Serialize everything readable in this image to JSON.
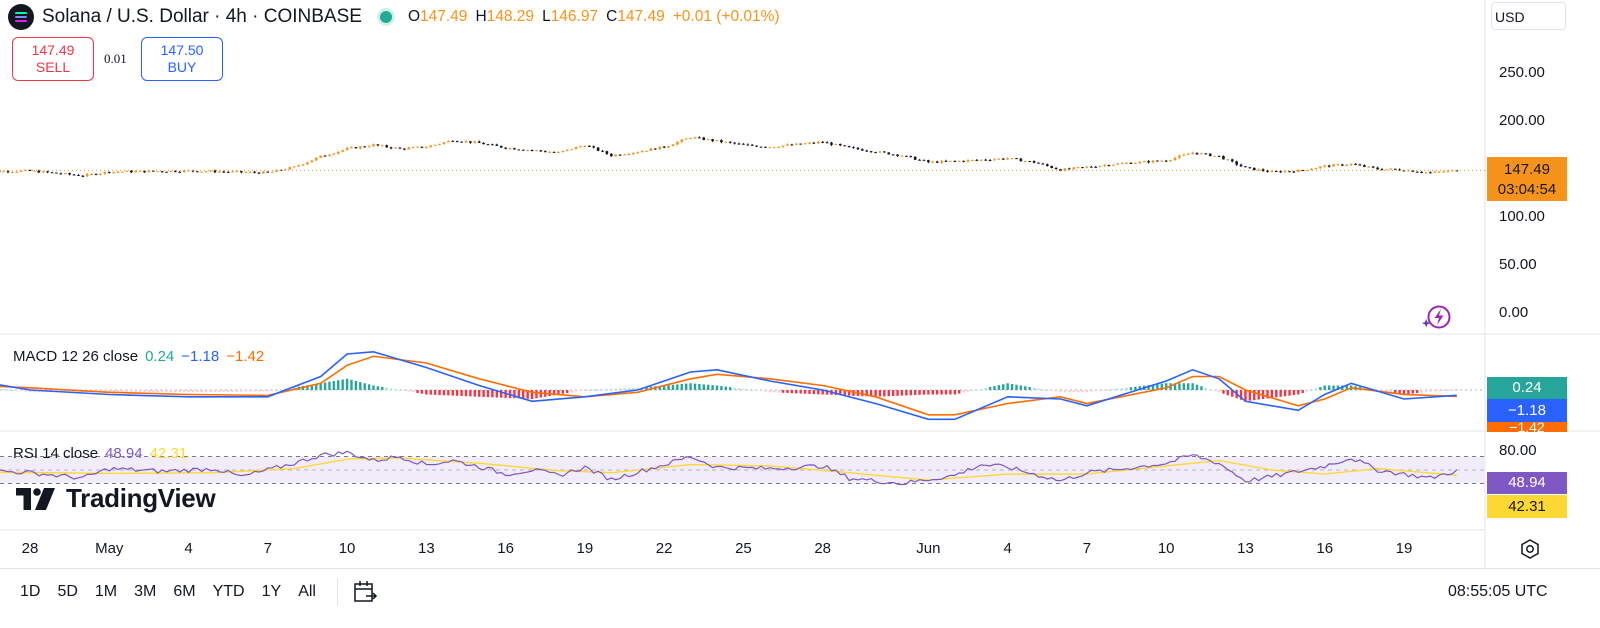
{
  "header": {
    "symbol": "Solana / U.S. Dollar · 4h · COINBASE",
    "ohlc": {
      "o_label": "O",
      "o": "147.49",
      "h_label": "H",
      "h": "148.29",
      "l_label": "L",
      "l": "146.97",
      "c_label": "C",
      "c": "147.49",
      "change": "+0.01 (+0.01%)"
    },
    "currency": "USD"
  },
  "trade": {
    "sell_price": "147.49",
    "sell_label": "SELL",
    "spread": "0.01",
    "buy_price": "147.50",
    "buy_label": "BUY"
  },
  "price_tag": {
    "price": "147.49",
    "countdown": "03:04:54"
  },
  "macd": {
    "title": "MACD 12 26 close",
    "hist": "0.24",
    "macd": "−1.18",
    "signal": "−1.42",
    "tag_hist": "0.24",
    "tag_macd": "−1.18",
    "tag_signal": "−1.42"
  },
  "rsi": {
    "title": "RSI 14 close",
    "rsi": "48.94",
    "ma": "42.31",
    "tag_rsi": "48.94",
    "tag_ma": "42.31"
  },
  "brand": "TradingView",
  "toolbar": {
    "timeframes": [
      "1D",
      "5D",
      "1M",
      "3M",
      "6M",
      "YTD",
      "1Y",
      "All"
    ],
    "clock": "08:55:05 UTC"
  },
  "colors": {
    "up": "#f7931a",
    "down": "#131722",
    "macd": "#2962ff",
    "signal": "#ff6d00",
    "hist_up": "#26a69a",
    "hist_down": "#f23645",
    "rsi": "#7e57c2",
    "rsi_ma": "#fdd835",
    "rsi_band": "#f1ecfa"
  },
  "icons": [
    "solana-logo-icon",
    "market-open-dot-icon",
    "calendar-icon",
    "settings-icon",
    "flash-icon",
    "tradingview-logo-icon"
  ],
  "chart_data": [
    {
      "type": "candlestick",
      "title": "Solana / U.S. Dollar · 4h · COINBASE",
      "ylim": [
        0,
        260
      ],
      "y_ticks": [
        "250.00",
        "200.00",
        "100.00",
        "50.00",
        "0.00"
      ],
      "y_tick_values": [
        250,
        200,
        100,
        50,
        0
      ],
      "x_tick_labels": [
        "28",
        "May",
        "4",
        "7",
        "10",
        "13",
        "16",
        "19",
        "22",
        "25",
        "28",
        "Jun",
        "4",
        "7",
        "10",
        "13",
        "16",
        "19"
      ],
      "x_tick_dates": [
        "2024-04-28",
        "2024-05-01",
        "2024-05-04",
        "2024-05-07",
        "2024-05-10",
        "2024-05-13",
        "2024-05-16",
        "2024-05-19",
        "2024-05-22",
        "2024-05-25",
        "2024-05-28",
        "2024-06-01",
        "2024-06-04",
        "2024-06-07",
        "2024-06-10",
        "2024-06-13",
        "2024-06-16",
        "2024-06-19"
      ],
      "close_trend": [
        {
          "date": "2024-04-26",
          "close": 146
        },
        {
          "date": "2024-04-28",
          "close": 147
        },
        {
          "date": "2024-04-30",
          "close": 142
        },
        {
          "date": "2024-05-01",
          "close": 146
        },
        {
          "date": "2024-05-04",
          "close": 147
        },
        {
          "date": "2024-05-07",
          "close": 145
        },
        {
          "date": "2024-05-08",
          "close": 151
        },
        {
          "date": "2024-05-09",
          "close": 162
        },
        {
          "date": "2024-05-10",
          "close": 170
        },
        {
          "date": "2024-05-11",
          "close": 174
        },
        {
          "date": "2024-05-12",
          "close": 170
        },
        {
          "date": "2024-05-13",
          "close": 172
        },
        {
          "date": "2024-05-14",
          "close": 179
        },
        {
          "date": "2024-05-15",
          "close": 176
        },
        {
          "date": "2024-05-16",
          "close": 171
        },
        {
          "date": "2024-05-18",
          "close": 166
        },
        {
          "date": "2024-05-19",
          "close": 174
        },
        {
          "date": "2024-05-20",
          "close": 163
        },
        {
          "date": "2024-05-21",
          "close": 167
        },
        {
          "date": "2024-05-22",
          "close": 172
        },
        {
          "date": "2024-05-23",
          "close": 182
        },
        {
          "date": "2024-05-24",
          "close": 178
        },
        {
          "date": "2024-05-25",
          "close": 174
        },
        {
          "date": "2024-05-26",
          "close": 172
        },
        {
          "date": "2024-05-28",
          "close": 177
        },
        {
          "date": "2024-05-29",
          "close": 171
        },
        {
          "date": "2024-05-31",
          "close": 163
        },
        {
          "date": "2024-06-01",
          "close": 156
        },
        {
          "date": "2024-06-02",
          "close": 157
        },
        {
          "date": "2024-06-04",
          "close": 160
        },
        {
          "date": "2024-06-05",
          "close": 156
        },
        {
          "date": "2024-06-06",
          "close": 148
        },
        {
          "date": "2024-06-07",
          "close": 151
        },
        {
          "date": "2024-06-08",
          "close": 154
        },
        {
          "date": "2024-06-10",
          "close": 158
        },
        {
          "date": "2024-06-11",
          "close": 166
        },
        {
          "date": "2024-06-12",
          "close": 162
        },
        {
          "date": "2024-06-13",
          "close": 150
        },
        {
          "date": "2024-06-14",
          "close": 146
        },
        {
          "date": "2024-06-15",
          "close": 147
        },
        {
          "date": "2024-06-16",
          "close": 152
        },
        {
          "date": "2024-06-17",
          "close": 154
        },
        {
          "date": "2024-06-18",
          "close": 149
        },
        {
          "date": "2024-06-19",
          "close": 148
        },
        {
          "date": "2024-06-20",
          "close": 145
        },
        {
          "date": "2024-06-21",
          "close": 147.49
        }
      ],
      "last_price": 147.49
    },
    {
      "type": "line",
      "title": "MACD 12 26 close",
      "series": [
        {
          "name": "MACD",
          "points": [
            {
              "date": "2024-04-26",
              "value": 2
            },
            {
              "date": "2024-04-28",
              "value": 0
            },
            {
              "date": "2024-05-01",
              "value": -1
            },
            {
              "date": "2024-05-04",
              "value": -1.5
            },
            {
              "date": "2024-05-07",
              "value": -1.5
            },
            {
              "date": "2024-05-09",
              "value": 3
            },
            {
              "date": "2024-05-10",
              "value": 8
            },
            {
              "date": "2024-05-11",
              "value": 8.5
            },
            {
              "date": "2024-05-13",
              "value": 5
            },
            {
              "date": "2024-05-15",
              "value": 1
            },
            {
              "date": "2024-05-17",
              "value": -2.5
            },
            {
              "date": "2024-05-19",
              "value": -1.5
            },
            {
              "date": "2024-05-21",
              "value": 0
            },
            {
              "date": "2024-05-23",
              "value": 4
            },
            {
              "date": "2024-05-24",
              "value": 4.5
            },
            {
              "date": "2024-05-26",
              "value": 2
            },
            {
              "date": "2024-05-28",
              "value": 0
            },
            {
              "date": "2024-05-30",
              "value": -3
            },
            {
              "date": "2024-06-01",
              "value": -6.5
            },
            {
              "date": "2024-06-02",
              "value": -6.5
            },
            {
              "date": "2024-06-04",
              "value": -1.5
            },
            {
              "date": "2024-06-06",
              "value": -2
            },
            {
              "date": "2024-06-07",
              "value": -3.5
            },
            {
              "date": "2024-06-10",
              "value": 2
            },
            {
              "date": "2024-06-11",
              "value": 4.5
            },
            {
              "date": "2024-06-12",
              "value": 2.5
            },
            {
              "date": "2024-06-13",
              "value": -2.5
            },
            {
              "date": "2024-06-15",
              "value": -4.5
            },
            {
              "date": "2024-06-16",
              "value": -1
            },
            {
              "date": "2024-06-17",
              "value": 1.5
            },
            {
              "date": "2024-06-19",
              "value": -2
            },
            {
              "date": "2024-06-21",
              "value": -1.18
            }
          ]
        },
        {
          "name": "Signal",
          "points": [
            {
              "date": "2024-04-26",
              "value": 1
            },
            {
              "date": "2024-04-28",
              "value": 0.5
            },
            {
              "date": "2024-05-01",
              "value": -0.5
            },
            {
              "date": "2024-05-04",
              "value": -1
            },
            {
              "date": "2024-05-07",
              "value": -1.2
            },
            {
              "date": "2024-05-09",
              "value": 1.5
            },
            {
              "date": "2024-05-10",
              "value": 5.5
            },
            {
              "date": "2024-05-11",
              "value": 7.5
            },
            {
              "date": "2024-05-13",
              "value": 6
            },
            {
              "date": "2024-05-15",
              "value": 2.5
            },
            {
              "date": "2024-05-17",
              "value": -0.5
            },
            {
              "date": "2024-05-19",
              "value": -1.5
            },
            {
              "date": "2024-05-21",
              "value": -0.5
            },
            {
              "date": "2024-05-23",
              "value": 2.5
            },
            {
              "date": "2024-05-24",
              "value": 3.5
            },
            {
              "date": "2024-05-26",
              "value": 2.5
            },
            {
              "date": "2024-05-28",
              "value": 1
            },
            {
              "date": "2024-05-30",
              "value": -1.5
            },
            {
              "date": "2024-06-01",
              "value": -5.5
            },
            {
              "date": "2024-06-02",
              "value": -5.5
            },
            {
              "date": "2024-06-04",
              "value": -3
            },
            {
              "date": "2024-06-06",
              "value": -1.5
            },
            {
              "date": "2024-06-07",
              "value": -3
            },
            {
              "date": "2024-06-10",
              "value": 0.5
            },
            {
              "date": "2024-06-11",
              "value": 3
            },
            {
              "date": "2024-06-12",
              "value": 3
            },
            {
              "date": "2024-06-13",
              "value": 0
            },
            {
              "date": "2024-06-15",
              "value": -3.5
            },
            {
              "date": "2024-06-16",
              "value": -2
            },
            {
              "date": "2024-06-17",
              "value": 0.5
            },
            {
              "date": "2024-06-19",
              "value": -1
            },
            {
              "date": "2024-06-21",
              "value": -1.42
            }
          ]
        }
      ],
      "last_values": {
        "hist": 0.24,
        "macd": -1.18,
        "signal": -1.42
      }
    },
    {
      "type": "line",
      "title": "RSI 14 close",
      "y_ticks": [
        "80.00"
      ],
      "bands": [
        70,
        30
      ],
      "series": [
        {
          "name": "RSI",
          "points": [
            {
              "date": "2024-04-26",
              "value": 50
            },
            {
              "date": "2024-04-28",
              "value": 46
            },
            {
              "date": "2024-04-30",
              "value": 38
            },
            {
              "date": "2024-05-01",
              "value": 52
            },
            {
              "date": "2024-05-03",
              "value": 48
            },
            {
              "date": "2024-05-05",
              "value": 52
            },
            {
              "date": "2024-05-06",
              "value": 40
            },
            {
              "date": "2024-05-08",
              "value": 60
            },
            {
              "date": "2024-05-09",
              "value": 72
            },
            {
              "date": "2024-05-10",
              "value": 76
            },
            {
              "date": "2024-05-11",
              "value": 64
            },
            {
              "date": "2024-05-12",
              "value": 70
            },
            {
              "date": "2024-05-13",
              "value": 58
            },
            {
              "date": "2024-05-14",
              "value": 64
            },
            {
              "date": "2024-05-15",
              "value": 55
            },
            {
              "date": "2024-05-16",
              "value": 44
            },
            {
              "date": "2024-05-17",
              "value": 50
            },
            {
              "date": "2024-05-18",
              "value": 42
            },
            {
              "date": "2024-05-19",
              "value": 54
            },
            {
              "date": "2024-05-20",
              "value": 36
            },
            {
              "date": "2024-05-22",
              "value": 58
            },
            {
              "date": "2024-05-23",
              "value": 70
            },
            {
              "date": "2024-05-24",
              "value": 54
            },
            {
              "date": "2024-05-26",
              "value": 52
            },
            {
              "date": "2024-05-28",
              "value": 56
            },
            {
              "date": "2024-05-29",
              "value": 38
            },
            {
              "date": "2024-05-31",
              "value": 30
            },
            {
              "date": "2024-06-01",
              "value": 36
            },
            {
              "date": "2024-06-02",
              "value": 42
            },
            {
              "date": "2024-06-03",
              "value": 58
            },
            {
              "date": "2024-06-04",
              "value": 54
            },
            {
              "date": "2024-06-06",
              "value": 34
            },
            {
              "date": "2024-06-07",
              "value": 46
            },
            {
              "date": "2024-06-08",
              "value": 50
            },
            {
              "date": "2024-06-10",
              "value": 60
            },
            {
              "date": "2024-06-11",
              "value": 72
            },
            {
              "date": "2024-06-12",
              "value": 60
            },
            {
              "date": "2024-06-13",
              "value": 34
            },
            {
              "date": "2024-06-14",
              "value": 40
            },
            {
              "date": "2024-06-16",
              "value": 56
            },
            {
              "date": "2024-06-17",
              "value": 68
            },
            {
              "date": "2024-06-18",
              "value": 50
            },
            {
              "date": "2024-06-19",
              "value": 44
            },
            {
              "date": "2024-06-20",
              "value": 38
            },
            {
              "date": "2024-06-21",
              "value": 48.94
            }
          ]
        },
        {
          "name": "RSI MA",
          "points": [
            {
              "date": "2024-04-26",
              "value": 47
            },
            {
              "date": "2024-05-01",
              "value": 45
            },
            {
              "date": "2024-05-05",
              "value": 46
            },
            {
              "date": "2024-05-08",
              "value": 52
            },
            {
              "date": "2024-05-10",
              "value": 66
            },
            {
              "date": "2024-05-12",
              "value": 68
            },
            {
              "date": "2024-05-15",
              "value": 60
            },
            {
              "date": "2024-05-18",
              "value": 49
            },
            {
              "date": "2024-05-20",
              "value": 46
            },
            {
              "date": "2024-05-23",
              "value": 58
            },
            {
              "date": "2024-05-26",
              "value": 56
            },
            {
              "date": "2024-05-29",
              "value": 46
            },
            {
              "date": "2024-06-01",
              "value": 35
            },
            {
              "date": "2024-06-04",
              "value": 44
            },
            {
              "date": "2024-06-07",
              "value": 44
            },
            {
              "date": "2024-06-10",
              "value": 56
            },
            {
              "date": "2024-06-12",
              "value": 64
            },
            {
              "date": "2024-06-14",
              "value": 50
            },
            {
              "date": "2024-06-16",
              "value": 44
            },
            {
              "date": "2024-06-18",
              "value": 52
            },
            {
              "date": "2024-06-21",
              "value": 42.31
            }
          ]
        }
      ],
      "last_values": {
        "rsi": 48.94,
        "ma": 42.31
      }
    }
  ]
}
